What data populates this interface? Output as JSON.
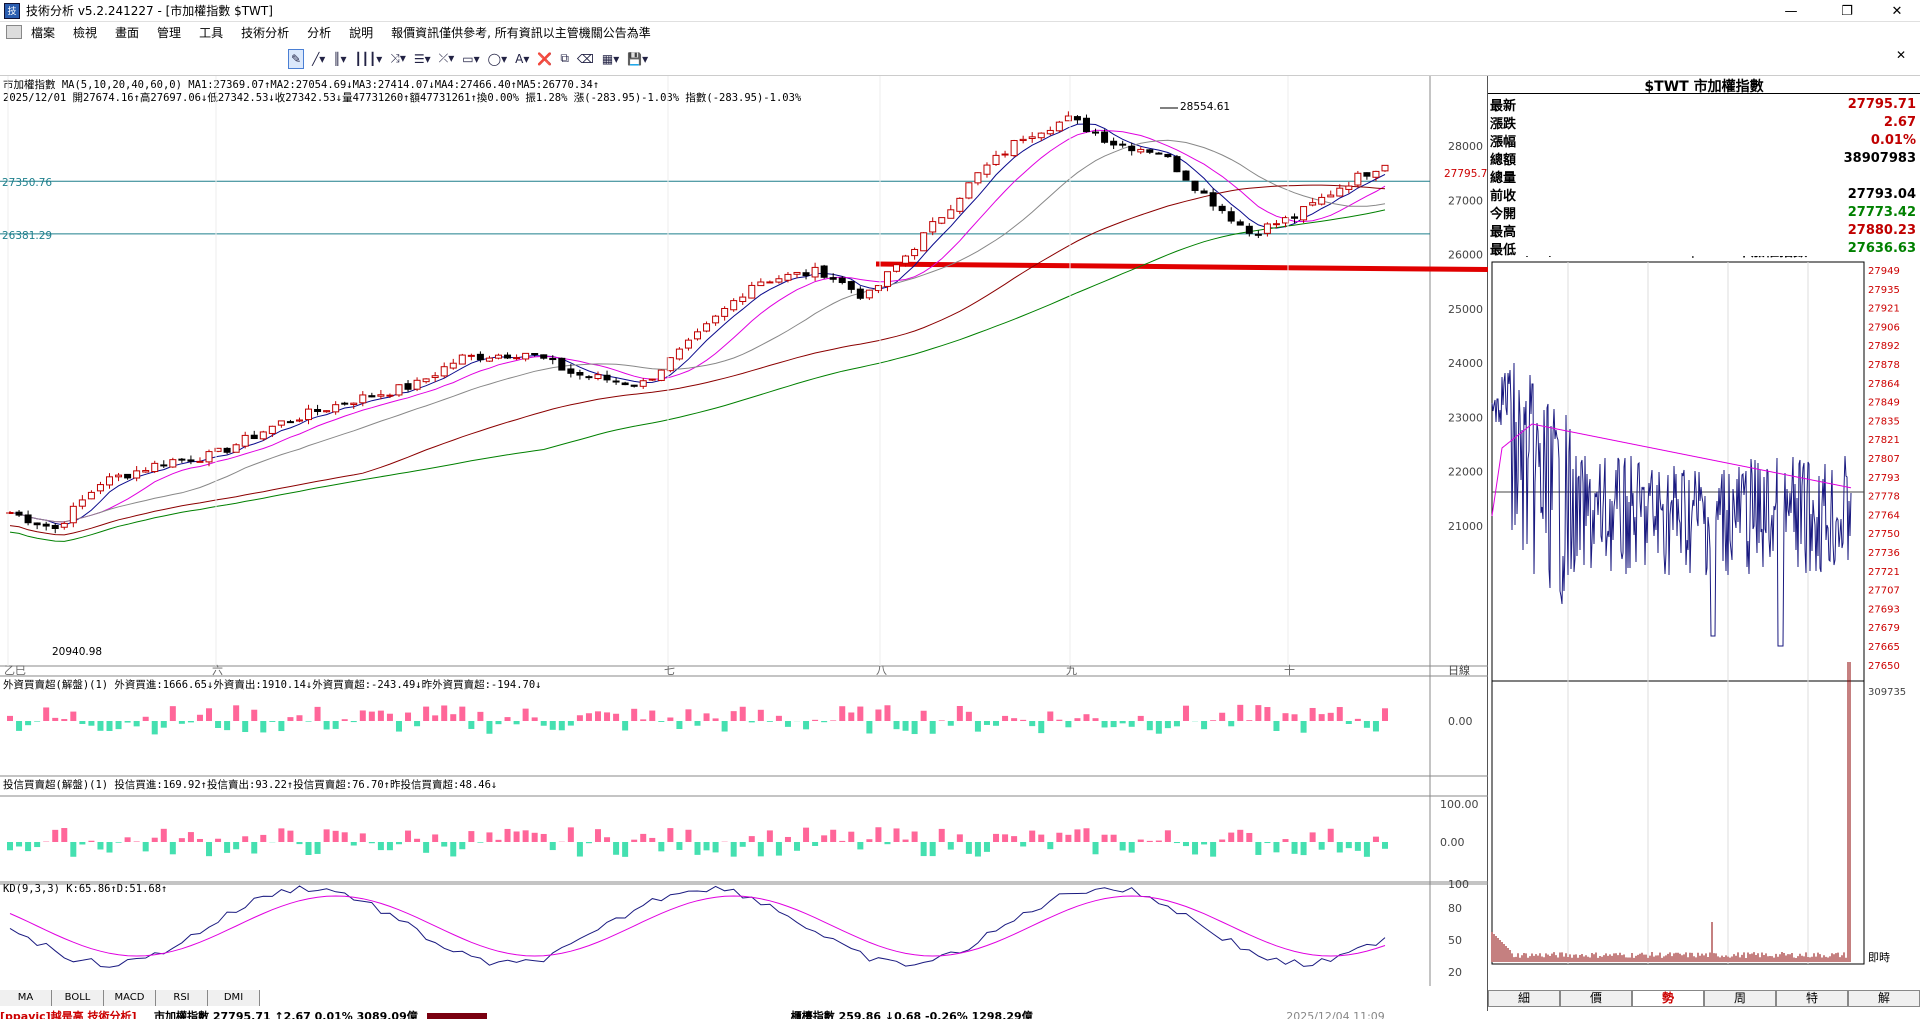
{
  "window": {
    "title": "技術分析 v5.2.241227 - [市加權指數 $TWT]",
    "app_icon": "技"
  },
  "menu": [
    "檔案",
    "檢視",
    "畫面",
    "管理",
    "工具",
    "技術分析",
    "分析",
    "說明",
    "報價資訊僅供參考, 所有資訊以主管機關公告為準"
  ],
  "chart": {
    "header1": "市加權指數 MA(5,10,20,40,60,0) MA1:27369.07↑MA2:27054.69↓MA3:27414.07↓MA4:27466.40↑MA5:26770.34↑",
    "header2": "2025/12/01 開27674.16↑高27697.06↓低27342.53↓收27342.53↓量47731260↑額47731261↑換0.00% 振1.28% 漲(-283.95)-1.03% 指數(-283.95)-1.03%",
    "high_label": "28554.61",
    "low_label": "20940.98",
    "hline1_label": "27350.76",
    "hline2_label": "26381.29",
    "current_price_label": "27795.7",
    "yaxis": [
      "28000",
      "27000",
      "26000",
      "25000",
      "24000",
      "23000",
      "22000",
      "21000"
    ],
    "months": [
      "乙巳",
      "六",
      "七",
      "八",
      "九",
      "十"
    ],
    "axis_caption": "日線",
    "colors": {
      "up": "#c00000",
      "down": "#000000",
      "ma1": "#0a0a8c",
      "ma2": "#e000e0",
      "ma3": "#888888",
      "ma4": "#8b0000",
      "ma5": "#008000",
      "hline": "#1e7f8c",
      "redline": "#e00000",
      "pos_bar": "#ff6699",
      "neg_bar": "#44e0b0"
    }
  },
  "foreign": {
    "header": "外資買賣超(解盤)(1) 外資買進:1666.65↓外資賣出:1910.14↓外資買賣超:-243.49↓昨外資買賣超:-194.70↓",
    "axis": "0.00"
  },
  "trust": {
    "header": "投信買賣超(解盤)(1) 投信買進:169.92↑投信賣出:93.22↑投信買賣超:76.70↑昨投信買賣超:48.46↓",
    "axis": [
      "100.00",
      "0.00"
    ]
  },
  "kd": {
    "header": "KD(9,3,3) K:65.86↑D:51.68↑",
    "axis": [
      "100",
      "80",
      "50",
      "20"
    ]
  },
  "indicator_tabs": [
    "MA",
    "BOLL",
    "MACD",
    "RSI",
    "DMI"
  ],
  "quote": {
    "title": "$TWT 市加權指數",
    "rows": [
      {
        "label": "最新",
        "value": "27795.71",
        "color": "#c00000"
      },
      {
        "label": "漲跌",
        "value": "2.67",
        "color": "#c00000"
      },
      {
        "label": "漲幅",
        "value": "0.01%",
        "color": "#c00000"
      },
      {
        "label": "總額",
        "value": "38907983",
        "color": "#000000"
      },
      {
        "label": "總量",
        "value": "",
        "color": "#000000"
      },
      {
        "label": "前收",
        "value": "27793.04",
        "color": "#000000"
      },
      {
        "label": "今開",
        "value": "27773.42",
        "color": "#008000"
      },
      {
        "label": "最高",
        "value": "27880.23",
        "color": "#c00000"
      },
      {
        "label": "最低",
        "value": "27636.63",
        "color": "#008000"
      }
    ]
  },
  "intraday": {
    "date": "2025/12/04",
    "title": "$TWT 市加權指數",
    "yaxis": [
      "27949",
      "27935",
      "27921",
      "27906",
      "27892",
      "27878",
      "27864",
      "27849",
      "27835",
      "27821",
      "27807",
      "27793",
      "27778",
      "27764",
      "27750",
      "27736",
      "27721",
      "27707",
      "27693",
      "27679",
      "27665",
      "27650"
    ],
    "vol_label": "309735",
    "time_label": "即時",
    "colors": {
      "price": "#1a1a80",
      "price_down": "#c00000",
      "avg": "#e000e0",
      "vol": "#8b0000"
    }
  },
  "intraday_tabs": [
    "細",
    "價",
    "勢",
    "周",
    "特",
    "解"
  ],
  "intraday_active_tab": "勢",
  "status": {
    "left": "[ppavic]越是高 技術分析]",
    "index1": "市加權指數 27795.71 ↑2.67 0.01% 3089.09億",
    "index2": "櫃檯指數 259.86 ↓0.68 -0.26% 1298.29億",
    "time": "2025/12/04 11:09"
  }
}
